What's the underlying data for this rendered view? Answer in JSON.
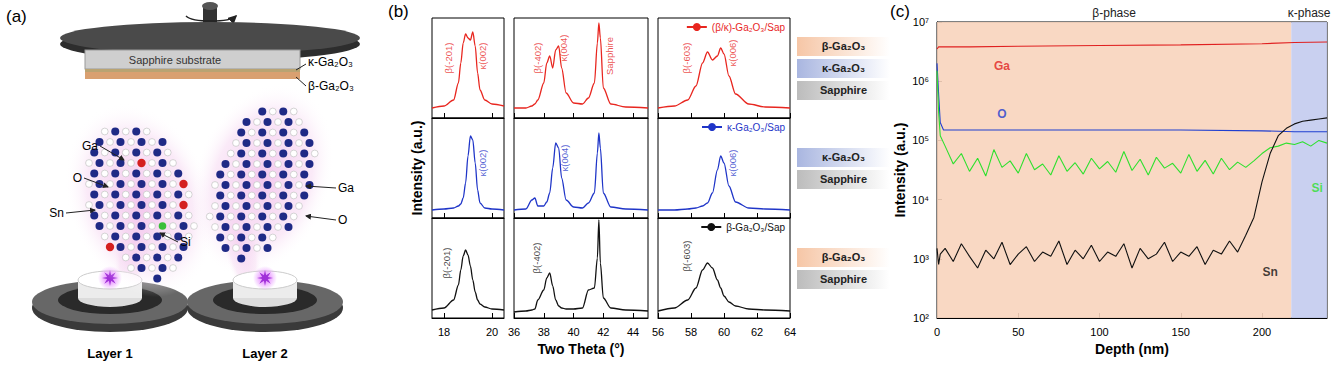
{
  "diagram": {
    "panel": "(a)",
    "substrate": "Sapphire substrate",
    "films": [
      "κ-Ga₂O₃",
      "β-Ga₂O₃"
    ],
    "clouds": [
      {
        "labels": [
          "Ga",
          "O",
          "Sn",
          "Si"
        ]
      },
      {
        "labels": [
          "Ga",
          "O"
        ]
      }
    ],
    "sources": [
      "Layer 1",
      "Layer 2"
    ]
  },
  "chart_data": [
    {
      "panel": "(b)",
      "type": "line",
      "x_label": "Two Theta (°)",
      "y_label": "Intensity (a.u.)",
      "ylim": [
        0,
        100
      ],
      "tick_labels": "x",
      "grid": false,
      "legend": "upper right",
      "segments": [
        {
          "xlim": [
            17.5,
            20.5
          ],
          "xticks": [
            18,
            20
          ],
          "x": [
            17.5,
            18.0,
            18.4,
            18.6,
            18.7,
            18.8,
            18.9,
            19.0,
            19.1,
            19.2,
            19.3,
            19.4,
            19.5,
            19.7,
            20.0,
            20.5
          ]
        },
        {
          "xlim": [
            36,
            45
          ],
          "xticks": [
            36,
            38,
            40,
            42,
            44
          ],
          "x": [
            36.0,
            36.8,
            37.2,
            37.4,
            37.6,
            38.0,
            38.2,
            38.4,
            38.6,
            38.8,
            39.0,
            39.2,
            39.5,
            40.0,
            40.6,
            41.0,
            41.4,
            41.6,
            41.7,
            41.8,
            42.0,
            42.5,
            43.5,
            45.0
          ]
        },
        {
          "xlim": [
            56,
            64
          ],
          "xticks": [
            56,
            58,
            60,
            62,
            64
          ],
          "x": [
            56.0,
            57.0,
            57.8,
            58.3,
            58.7,
            59.0,
            59.3,
            59.6,
            59.8,
            60.0,
            60.3,
            60.7,
            61.5,
            62.5,
            64.0
          ]
        }
      ],
      "panels": [
        {
          "name": "(β/κ)-Ga₂O₃/Sap",
          "color": "#e8261f",
          "layers": [
            {
              "name": "β-Ga₂O₃",
              "color": "#f6c6a6"
            },
            {
              "name": "κ-Ga₂O₃",
              "color": "#a9b6e0"
            },
            {
              "name": "Sapphire",
              "color": "#bcbcbc"
            }
          ],
          "values": [
            [
              10,
              12,
              18,
              35,
              55,
              75,
              84,
              80,
              78,
              86,
              72,
              45,
              28,
              18,
              14,
              12
            ],
            [
              10,
              10,
              12,
              14,
              18,
              35,
              55,
              62,
              50,
              68,
              72,
              50,
              25,
              15,
              14,
              20,
              35,
              75,
              95,
              80,
              30,
              14,
              11,
              10
            ],
            [
              10,
              12,
              18,
              32,
              55,
              66,
              58,
              62,
              70,
              64,
              42,
              24,
              14,
              11,
              10
            ]
          ],
          "annotations": [
            [
              {
                "text": "β(-201)",
                "x": 18.2,
                "y": 60
              },
              {
                "text": "κ(002)",
                "x": 19.6,
                "y": 62
              }
            ],
            [
              {
                "text": "β(-402)",
                "x": 37.6,
                "y": 60
              },
              {
                "text": "κ(004)",
                "x": 39.35,
                "y": 70
              },
              {
                "text": "Sapphire",
                "x": 42.4,
                "y": 62
              }
            ],
            [
              {
                "text": "β(-603)",
                "x": 57.7,
                "y": 60
              },
              {
                "text": "κ(006)",
                "x": 60.5,
                "y": 65
              }
            ]
          ]
        },
        {
          "name": "κ-Ga₂O₃/Sap",
          "color": "#1f35c8",
          "layers": [
            {
              "name": "κ-Ga₂O₃",
              "color": "#a9b6e0"
            },
            {
              "name": "Sapphire",
              "color": "#bcbcbc"
            }
          ],
          "values": [
            [
              8,
              9,
              10,
              12,
              14,
              20,
              35,
              62,
              82,
              78,
              55,
              28,
              15,
              10,
              9,
              8
            ],
            [
              8,
              9,
              18,
              20,
              12,
              12,
              16,
              25,
              50,
              75,
              70,
              40,
              18,
              11,
              10,
              15,
              25,
              65,
              85,
              70,
              25,
              11,
              9,
              8
            ],
            [
              8,
              8,
              9,
              10,
              12,
              15,
              25,
              48,
              62,
              55,
              32,
              16,
              10,
              9,
              8
            ]
          ],
          "annotations": [
            [
              {
                "text": "κ(002)",
                "x": 19.6,
                "y": 55
              }
            ],
            [
              {
                "text": "κ(004)",
                "x": 39.4,
                "y": 60
              }
            ],
            [
              {
                "text": "κ(006)",
                "x": 60.5,
                "y": 55
              }
            ]
          ]
        },
        {
          "name": "β-Ga₂O₃/Sap",
          "color": "#111111",
          "layers": [
            {
              "name": "β-Ga₂O₃",
              "color": "#f6c6a6"
            },
            {
              "name": "Sapphire",
              "color": "#bcbcbc"
            }
          ],
          "values": [
            [
              8,
              10,
              18,
              33,
              48,
              62,
              68,
              63,
              52,
              38,
              26,
              18,
              14,
              11,
              9,
              8
            ],
            [
              6,
              7,
              8,
              9,
              18,
              28,
              40,
              45,
              32,
              18,
              12,
              10,
              9,
              9,
              10,
              28,
              30,
              60,
              98,
              55,
              20,
              10,
              8,
              7
            ],
            [
              7,
              10,
              18,
              30,
              48,
              55,
              50,
              38,
              30,
              22,
              16,
              12,
              9,
              8,
              7
            ]
          ],
          "annotations": [
            [
              {
                "text": "β(-201)",
                "x": 18.1,
                "y": 55
              }
            ],
            [
              {
                "text": "β(-402)",
                "x": 37.5,
                "y": 60
              }
            ],
            [
              {
                "text": "β(-603)",
                "x": 57.7,
                "y": 62
              }
            ]
          ]
        }
      ]
    },
    {
      "panel": "(c)",
      "type": "line",
      "x_label": "Depth (nm)",
      "y_label": "Intensity (a.u.)",
      "log": "y",
      "grid": false,
      "xlim": [
        0,
        240
      ],
      "xticks": [
        0,
        50,
        100,
        150,
        200
      ],
      "ylim": [
        100,
        10000000
      ],
      "yticks": [
        {
          "value": 100,
          "label": "10²"
        },
        {
          "value": 1000,
          "label": "10³"
        },
        {
          "value": 10000,
          "label": "10⁴"
        },
        {
          "value": 100000,
          "label": "10⁵"
        },
        {
          "value": 1000000,
          "label": "10⁶"
        },
        {
          "value": 10000000,
          "label": "10⁷"
        }
      ],
      "regions": [
        {
          "label": "β-phase",
          "from": 0,
          "to": 218,
          "color": "#f8d4bd"
        },
        {
          "label": "κ-phase",
          "from": 218,
          "to": 240,
          "color": "#c3cbee"
        }
      ],
      "series": [
        {
          "name": "Ga",
          "color": "#e02020",
          "label_at": [
            40,
            1800000
          ],
          "x": [
            0,
            1,
            20,
            50,
            100,
            150,
            200,
            220,
            240
          ],
          "values": [
            3500000,
            3800000,
            3800000,
            3900000,
            4000000,
            4100000,
            4300000,
            4500000,
            4600000
          ]
        },
        {
          "name": "O",
          "color": "#1f3fd0",
          "label_at": [
            40,
            280000
          ],
          "x": [
            0,
            1,
            2,
            4,
            20,
            50,
            100,
            150,
            200,
            220,
            240
          ],
          "values": [
            2000000,
            600000,
            200000,
            150000,
            150000,
            150000,
            150000,
            150000,
            145000,
            140000,
            140000
          ]
        },
        {
          "name": "Si",
          "color": "#2ee02e",
          "label_at": [
            234,
            16000
          ],
          "x": [
            0,
            1,
            2,
            5,
            10,
            15,
            20,
            25,
            30,
            35,
            40,
            45,
            50,
            55,
            60,
            65,
            70,
            75,
            80,
            85,
            90,
            95,
            100,
            105,
            110,
            115,
            120,
            125,
            130,
            135,
            140,
            145,
            150,
            155,
            160,
            165,
            170,
            175,
            180,
            185,
            190,
            195,
            200,
            205,
            210,
            215,
            220,
            225,
            230,
            235,
            240
          ],
          "values": [
            1500000,
            300000,
            120000,
            80000,
            40000,
            60000,
            30000,
            50000,
            25000,
            70000,
            35000,
            45000,
            28000,
            60000,
            32000,
            40000,
            26000,
            55000,
            30000,
            42000,
            27000,
            50000,
            33000,
            44000,
            29000,
            65000,
            31000,
            48000,
            26000,
            52000,
            34000,
            41000,
            28000,
            58000,
            30000,
            46000,
            27000,
            50000,
            32000,
            43000,
            35000,
            45000,
            60000,
            75000,
            80000,
            90000,
            85000,
            95000,
            80000,
            100000,
            90000
          ]
        },
        {
          "name": "Sn",
          "color": "#111111",
          "label_at": [
            205,
            600
          ],
          "x": [
            0,
            1,
            2,
            5,
            10,
            15,
            20,
            25,
            30,
            35,
            40,
            45,
            50,
            55,
            60,
            65,
            70,
            75,
            80,
            85,
            90,
            95,
            100,
            105,
            110,
            115,
            120,
            125,
            130,
            135,
            140,
            145,
            150,
            155,
            160,
            165,
            170,
            175,
            180,
            185,
            190,
            195,
            200,
            205,
            210,
            215,
            220,
            225,
            230,
            235,
            240
          ],
          "values": [
            1500,
            800,
            1200,
            1500,
            900,
            1800,
            1100,
            700,
            1400,
            1000,
            1900,
            800,
            1200,
            1600,
            900,
            1300,
            1100,
            2000,
            800,
            1400,
            1000,
            1700,
            900,
            1300,
            1100,
            1800,
            700,
            1500,
            1000,
            1200,
            1900,
            900,
            1300,
            1100,
            1600,
            800,
            1400,
            1200,
            2000,
            1300,
            2500,
            5000,
            20000,
            60000,
            120000,
            160000,
            190000,
            210000,
            220000,
            230000,
            240000
          ]
        }
      ]
    }
  ]
}
